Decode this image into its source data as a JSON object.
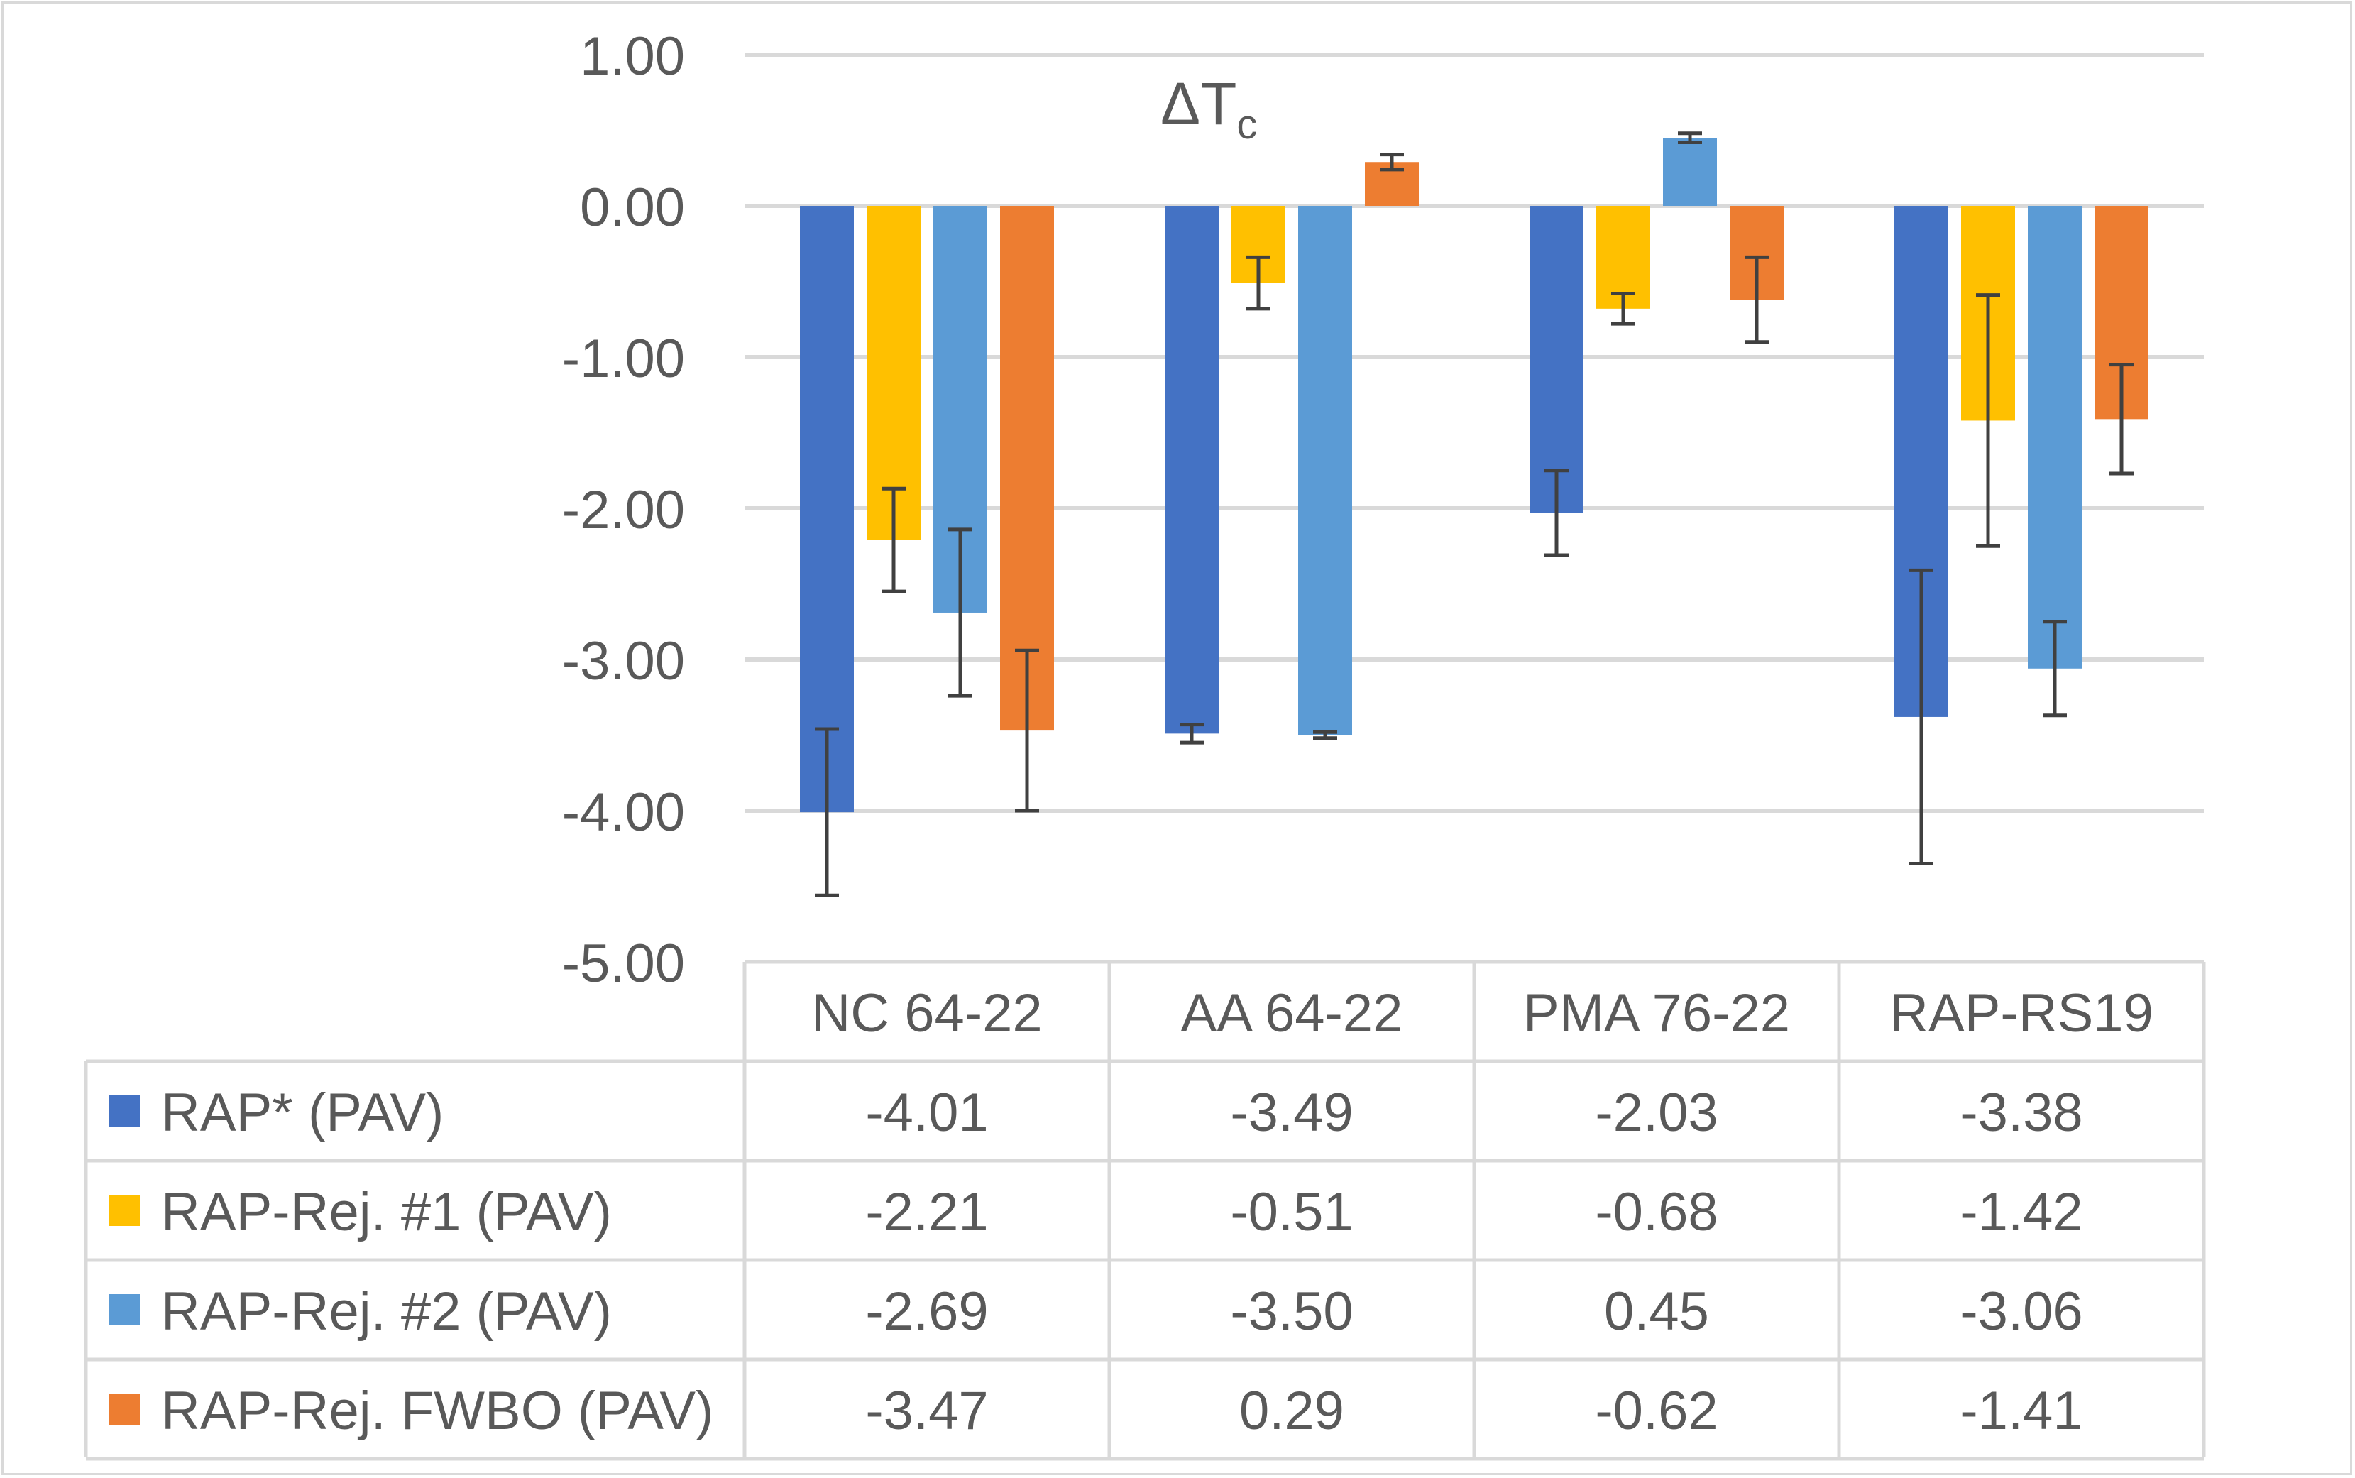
{
  "chart_data": {
    "type": "bar",
    "title": "ΔTc",
    "title_main": "ΔT",
    "title_sub": "c",
    "xlabel": "",
    "ylabel": "",
    "ylim": [
      -5,
      1
    ],
    "ytick_labels": [
      "1.00",
      "0.00",
      "-1.00",
      "-2.00",
      "-3.00",
      "-4.00",
      "-5.00"
    ],
    "yticks": [
      1,
      0,
      -1,
      -2,
      -3,
      -4,
      -5
    ],
    "grid": true,
    "legend": "data-table",
    "categories": [
      "NC 64-22",
      "AA 64-22",
      "PMA 76-22",
      "RAP-RS19"
    ],
    "series": [
      {
        "name": "RAP* (PAV)",
        "color": "#4472c4",
        "values": [
          -4.01,
          -3.49,
          -2.03,
          -3.38
        ],
        "error": [
          0.55,
          0.06,
          0.28,
          0.97
        ],
        "value_labels": [
          "-4.01",
          "-3.49",
          "-2.03",
          "-3.38"
        ]
      },
      {
        "name": "RAP-Rej. #1 (PAV)",
        "color": "#ffc000",
        "values": [
          -2.21,
          -0.51,
          -0.68,
          -1.42
        ],
        "error": [
          0.34,
          0.17,
          0.1,
          0.83
        ],
        "value_labels": [
          "-2.21",
          "-0.51",
          "-0.68",
          "-1.42"
        ]
      },
      {
        "name": "RAP-Rej. #2 (PAV)",
        "color": "#5b9bd5",
        "values": [
          -2.69,
          -3.5,
          0.45,
          -3.06
        ],
        "error": [
          0.55,
          0.02,
          0.03,
          0.31
        ],
        "value_labels": [
          "-2.69",
          "-3.50",
          "0.45",
          "-3.06"
        ]
      },
      {
        "name": "RAP-Rej. FWBO (PAV)",
        "color": "#ed7d31",
        "values": [
          -3.47,
          0.29,
          -0.62,
          -1.41
        ],
        "error": [
          0.53,
          0.05,
          0.28,
          0.36
        ],
        "value_labels": [
          "-3.47",
          "0.29",
          "-0.62",
          "-1.41"
        ]
      }
    ]
  }
}
